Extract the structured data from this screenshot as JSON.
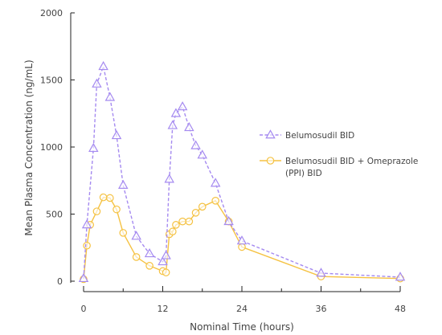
{
  "chart_data": {
    "type": "line",
    "xlabel": "Nominal Time (hours)",
    "ylabel": "Mean Plasma Concentration (ng/mL)",
    "xlim": [
      0,
      48
    ],
    "ylim": [
      0,
      2000
    ],
    "xticks": [
      0,
      12,
      24,
      36,
      48
    ],
    "yticks": [
      0,
      500,
      1000,
      1500,
      2000
    ],
    "legend_position": "right",
    "grid": false,
    "series": [
      {
        "name": "Belumosudil BID",
        "color": "#a58af0",
        "line_style": "dashed",
        "marker": "triangle",
        "x": [
          0,
          0.5,
          1.5,
          2,
          3,
          4,
          5,
          6,
          8,
          10,
          12,
          12.5,
          13,
          13.5,
          14,
          15,
          16,
          17,
          18,
          20,
          22,
          24,
          36,
          48
        ],
        "y": [
          20,
          420,
          990,
          1470,
          1600,
          1370,
          1085,
          715,
          335,
          205,
          145,
          190,
          760,
          1160,
          1250,
          1300,
          1145,
          1010,
          940,
          730,
          445,
          300,
          60,
          30
        ]
      },
      {
        "name": "Belumosudil BID + Omeprazole (PPI) BID",
        "color": "#f5c242",
        "line_style": "solid",
        "marker": "circle",
        "x": [
          0,
          0.5,
          1,
          2,
          3,
          4,
          5,
          6,
          8,
          10,
          12,
          12.5,
          13,
          13.5,
          14,
          15,
          16,
          17,
          18,
          20,
          22,
          24,
          36,
          48
        ],
        "y": [
          15,
          265,
          420,
          520,
          625,
          620,
          535,
          360,
          180,
          115,
          75,
          65,
          350,
          370,
          420,
          445,
          445,
          510,
          555,
          600,
          445,
          255,
          35,
          20
        ]
      }
    ],
    "legend": [
      {
        "lines": [
          "Belumosudil BID"
        ]
      },
      {
        "lines": [
          "Belumosudil BID + Omeprazole",
          "(PPI) BID"
        ]
      }
    ]
  }
}
